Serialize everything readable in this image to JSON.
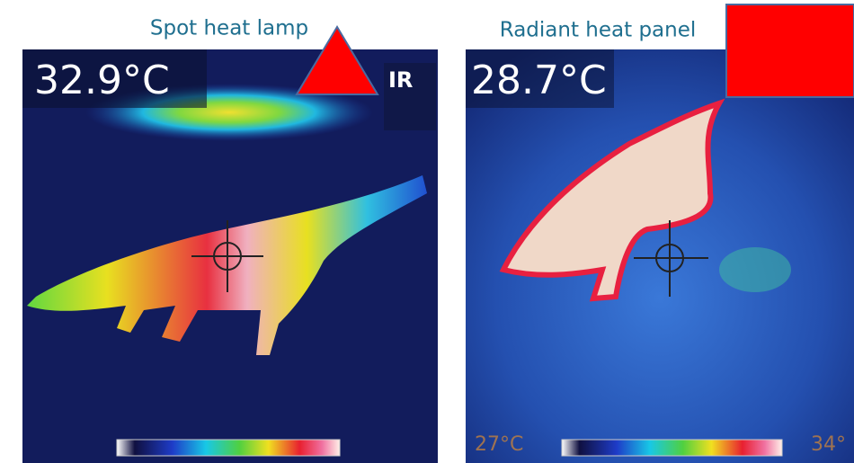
{
  "panels": [
    {
      "title": "Spot heat lamp",
      "temperature": "32.9°C",
      "badge": "IR"
    },
    {
      "title": "Radiant heat panel",
      "temperature": "28.7°C",
      "scale_min": "27°C",
      "scale_max": "34°"
    }
  ]
}
